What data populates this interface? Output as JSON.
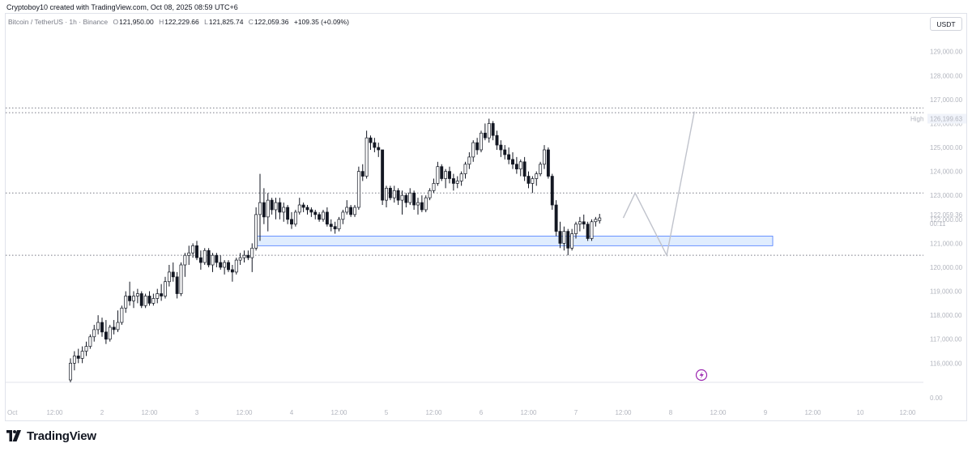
{
  "header": {
    "attribution": "Cryptoboy10 created with TradingView.com, Oct 08, 2025 08:59 UTC+6"
  },
  "legend": {
    "symbol": "Bitcoin / TetherUS · 1h · Binance",
    "open_label": "O",
    "open": "121,950.00",
    "high_label": "H",
    "high": "122,229.66",
    "low_label": "L",
    "low": "121,825.74",
    "close_label": "C",
    "close": "122,059.36",
    "change": "+109.35 (+0.09%)"
  },
  "currency_button": "USDT",
  "brand": {
    "name": "TradingView"
  },
  "colors": {
    "candle_up_body": "#ffffff",
    "candle_down_body": "#131722",
    "candle_border": "#131722",
    "zone_fill": "#dbeafe",
    "zone_border": "#2962ff",
    "projection": "#c0c3cc",
    "dotted_level": "#787b86",
    "price_tag": "#131722"
  },
  "chart_data": {
    "type": "candlestick",
    "ylim": [
      115200,
      129800
    ],
    "y_ticks": [
      116000,
      117000,
      118000,
      119000,
      120000,
      121000,
      122000,
      123000,
      124000,
      125000,
      126000,
      127000,
      128000,
      129000
    ],
    "y_tick_labels": [
      "116,000.00",
      "117,000.00",
      "118,000.00",
      "119,000.00",
      "120,000.00",
      "121,000.00",
      "122,000.00",
      "123,000.00",
      "124,000.00",
      "125,000.00",
      "126,000.00",
      "127,000.00",
      "128,000.00",
      "129,000.00"
    ],
    "y_zero_label": "0.00",
    "x_labels": [
      "Oct",
      "12:00",
      "2",
      "12:00",
      "3",
      "12:00",
      "4",
      "12:00",
      "5",
      "12:00",
      "6",
      "12:00",
      "7",
      "12:00",
      "8",
      "12:00",
      "9",
      "12:00",
      "10",
      "12:00"
    ],
    "x_label_hours": [
      0,
      12,
      24,
      36,
      48,
      60,
      72,
      84,
      96,
      108,
      120,
      132,
      144,
      156,
      168,
      180,
      192,
      204,
      216,
      228
    ],
    "candles": [
      {
        "o": 115300,
        "h": 116200,
        "l": 115200,
        "c": 116000
      },
      {
        "o": 116000,
        "h": 116500,
        "l": 115700,
        "c": 116300
      },
      {
        "o": 116300,
        "h": 116600,
        "l": 116000,
        "c": 116200
      },
      {
        "o": 116200,
        "h": 116700,
        "l": 116000,
        "c": 116500
      },
      {
        "o": 116500,
        "h": 116900,
        "l": 116300,
        "c": 116700
      },
      {
        "o": 116700,
        "h": 117200,
        "l": 116600,
        "c": 117100
      },
      {
        "o": 117100,
        "h": 117600,
        "l": 116900,
        "c": 117400
      },
      {
        "o": 117400,
        "h": 118000,
        "l": 117200,
        "c": 117700
      },
      {
        "o": 117700,
        "h": 117900,
        "l": 117100,
        "c": 117300
      },
      {
        "o": 117300,
        "h": 117800,
        "l": 116800,
        "c": 117000
      },
      {
        "o": 117000,
        "h": 117600,
        "l": 116900,
        "c": 117500
      },
      {
        "o": 117500,
        "h": 117800,
        "l": 117200,
        "c": 117400
      },
      {
        "o": 117400,
        "h": 118200,
        "l": 117300,
        "c": 117700
      },
      {
        "o": 117700,
        "h": 118400,
        "l": 117600,
        "c": 118300
      },
      {
        "o": 118300,
        "h": 119000,
        "l": 118100,
        "c": 118800
      },
      {
        "o": 118800,
        "h": 119400,
        "l": 118400,
        "c": 118600
      },
      {
        "o": 118600,
        "h": 119000,
        "l": 118300,
        "c": 118800
      },
      {
        "o": 118800,
        "h": 119100,
        "l": 118500,
        "c": 118900
      },
      {
        "o": 118900,
        "h": 119000,
        "l": 118300,
        "c": 118400
      },
      {
        "o": 118400,
        "h": 118900,
        "l": 118300,
        "c": 118800
      },
      {
        "o": 118800,
        "h": 119000,
        "l": 118400,
        "c": 118500
      },
      {
        "o": 118500,
        "h": 118900,
        "l": 118400,
        "c": 118700
      },
      {
        "o": 118700,
        "h": 119100,
        "l": 118500,
        "c": 118900
      },
      {
        "o": 118900,
        "h": 119300,
        "l": 118600,
        "c": 118800
      },
      {
        "o": 118800,
        "h": 119600,
        "l": 118700,
        "c": 119400
      },
      {
        "o": 119400,
        "h": 120100,
        "l": 119200,
        "c": 119800
      },
      {
        "o": 119800,
        "h": 120200,
        "l": 119400,
        "c": 119600
      },
      {
        "o": 119600,
        "h": 119800,
        "l": 118700,
        "c": 118900
      },
      {
        "o": 118900,
        "h": 120200,
        "l": 118800,
        "c": 120100
      },
      {
        "o": 120100,
        "h": 120600,
        "l": 119600,
        "c": 120500
      },
      {
        "o": 120500,
        "h": 120900,
        "l": 120100,
        "c": 120600
      },
      {
        "o": 120600,
        "h": 121000,
        "l": 120400,
        "c": 120900
      },
      {
        "o": 120900,
        "h": 121100,
        "l": 120300,
        "c": 120400
      },
      {
        "o": 120400,
        "h": 120700,
        "l": 119900,
        "c": 120200
      },
      {
        "o": 120200,
        "h": 120800,
        "l": 120100,
        "c": 120700
      },
      {
        "o": 120700,
        "h": 120800,
        "l": 120000,
        "c": 120100
      },
      {
        "o": 120100,
        "h": 120600,
        "l": 119800,
        "c": 120500
      },
      {
        "o": 120500,
        "h": 120600,
        "l": 120000,
        "c": 120200
      },
      {
        "o": 120200,
        "h": 120500,
        "l": 119900,
        "c": 120000
      },
      {
        "o": 120000,
        "h": 120300,
        "l": 119700,
        "c": 120200
      },
      {
        "o": 120200,
        "h": 120300,
        "l": 119800,
        "c": 119900
      },
      {
        "o": 119900,
        "h": 120100,
        "l": 119400,
        "c": 119800
      },
      {
        "o": 119800,
        "h": 120400,
        "l": 119700,
        "c": 120300
      },
      {
        "o": 120300,
        "h": 120600,
        "l": 120100,
        "c": 120400
      },
      {
        "o": 120400,
        "h": 120700,
        "l": 120200,
        "c": 120500
      },
      {
        "o": 120500,
        "h": 120700,
        "l": 120300,
        "c": 120400
      },
      {
        "o": 120400,
        "h": 121000,
        "l": 119800,
        "c": 120800
      },
      {
        "o": 120800,
        "h": 122500,
        "l": 120700,
        "c": 122200
      },
      {
        "o": 122200,
        "h": 123900,
        "l": 121100,
        "c": 122700
      },
      {
        "o": 122700,
        "h": 123300,
        "l": 121800,
        "c": 122100
      },
      {
        "o": 122100,
        "h": 123100,
        "l": 121500,
        "c": 122800
      },
      {
        "o": 122800,
        "h": 122900,
        "l": 122200,
        "c": 122400
      },
      {
        "o": 122400,
        "h": 122900,
        "l": 122000,
        "c": 122700
      },
      {
        "o": 122700,
        "h": 122900,
        "l": 122000,
        "c": 122300
      },
      {
        "o": 122300,
        "h": 122700,
        "l": 121900,
        "c": 122500
      },
      {
        "o": 122500,
        "h": 122600,
        "l": 121800,
        "c": 122000
      },
      {
        "o": 122000,
        "h": 122300,
        "l": 121600,
        "c": 121800
      },
      {
        "o": 121800,
        "h": 122400,
        "l": 121700,
        "c": 122300
      },
      {
        "o": 122300,
        "h": 122900,
        "l": 122200,
        "c": 122600
      },
      {
        "o": 122600,
        "h": 122700,
        "l": 122300,
        "c": 122500
      },
      {
        "o": 122500,
        "h": 122600,
        "l": 122200,
        "c": 122400
      },
      {
        "o": 122400,
        "h": 122500,
        "l": 122100,
        "c": 122300
      },
      {
        "o": 122300,
        "h": 122400,
        "l": 122000,
        "c": 122200
      },
      {
        "o": 122200,
        "h": 122300,
        "l": 121900,
        "c": 122000
      },
      {
        "o": 122000,
        "h": 122400,
        "l": 121900,
        "c": 122300
      },
      {
        "o": 122300,
        "h": 122500,
        "l": 121700,
        "c": 121800
      },
      {
        "o": 121800,
        "h": 122000,
        "l": 121500,
        "c": 121700
      },
      {
        "o": 121700,
        "h": 121900,
        "l": 121400,
        "c": 121600
      },
      {
        "o": 121600,
        "h": 122100,
        "l": 121500,
        "c": 122000
      },
      {
        "o": 122000,
        "h": 122400,
        "l": 121800,
        "c": 122300
      },
      {
        "o": 122300,
        "h": 122800,
        "l": 122200,
        "c": 122500
      },
      {
        "o": 122500,
        "h": 122600,
        "l": 122100,
        "c": 122200
      },
      {
        "o": 122200,
        "h": 122600,
        "l": 122100,
        "c": 122500
      },
      {
        "o": 122500,
        "h": 124200,
        "l": 122400,
        "c": 124000
      },
      {
        "o": 124000,
        "h": 124300,
        "l": 123600,
        "c": 123800
      },
      {
        "o": 123800,
        "h": 125700,
        "l": 123700,
        "c": 125400
      },
      {
        "o": 125400,
        "h": 125500,
        "l": 124900,
        "c": 125200
      },
      {
        "o": 125200,
        "h": 125400,
        "l": 124800,
        "c": 125000
      },
      {
        "o": 125000,
        "h": 125200,
        "l": 124600,
        "c": 124900
      },
      {
        "o": 124900,
        "h": 124900,
        "l": 122600,
        "c": 122800
      },
      {
        "o": 122800,
        "h": 123400,
        "l": 122500,
        "c": 123300
      },
      {
        "o": 123300,
        "h": 123400,
        "l": 122800,
        "c": 122900
      },
      {
        "o": 122900,
        "h": 123400,
        "l": 122700,
        "c": 123200
      },
      {
        "o": 123200,
        "h": 123300,
        "l": 122600,
        "c": 122800
      },
      {
        "o": 122800,
        "h": 123200,
        "l": 122200,
        "c": 123000
      },
      {
        "o": 123000,
        "h": 123100,
        "l": 122500,
        "c": 122700
      },
      {
        "o": 122700,
        "h": 123300,
        "l": 122600,
        "c": 123100
      },
      {
        "o": 123100,
        "h": 123200,
        "l": 122400,
        "c": 122600
      },
      {
        "o": 122600,
        "h": 122900,
        "l": 122200,
        "c": 122700
      },
      {
        "o": 122700,
        "h": 123000,
        "l": 122300,
        "c": 122400
      },
      {
        "o": 122400,
        "h": 123000,
        "l": 122300,
        "c": 122900
      },
      {
        "o": 122900,
        "h": 123300,
        "l": 122800,
        "c": 123200
      },
      {
        "o": 123200,
        "h": 123700,
        "l": 123100,
        "c": 123500
      },
      {
        "o": 123500,
        "h": 124400,
        "l": 123400,
        "c": 124200
      },
      {
        "o": 124200,
        "h": 124300,
        "l": 123600,
        "c": 123700
      },
      {
        "o": 123700,
        "h": 124100,
        "l": 123300,
        "c": 124000
      },
      {
        "o": 124000,
        "h": 124200,
        "l": 123500,
        "c": 123700
      },
      {
        "o": 123700,
        "h": 123900,
        "l": 123200,
        "c": 123500
      },
      {
        "o": 123500,
        "h": 123800,
        "l": 123300,
        "c": 123600
      },
      {
        "o": 123600,
        "h": 124000,
        "l": 123400,
        "c": 123900
      },
      {
        "o": 123900,
        "h": 124400,
        "l": 123700,
        "c": 124300
      },
      {
        "o": 124300,
        "h": 124800,
        "l": 124100,
        "c": 124600
      },
      {
        "o": 124600,
        "h": 125300,
        "l": 124400,
        "c": 125200
      },
      {
        "o": 125200,
        "h": 125400,
        "l": 124700,
        "c": 124900
      },
      {
        "o": 124900,
        "h": 125700,
        "l": 124800,
        "c": 125600
      },
      {
        "o": 125600,
        "h": 126000,
        "l": 125300,
        "c": 125400
      },
      {
        "o": 125400,
        "h": 126200,
        "l": 125200,
        "c": 126000
      },
      {
        "o": 126000,
        "h": 126100,
        "l": 125300,
        "c": 125500
      },
      {
        "o": 125500,
        "h": 125700,
        "l": 124900,
        "c": 125100
      },
      {
        "o": 125100,
        "h": 125300,
        "l": 124600,
        "c": 124900
      },
      {
        "o": 124900,
        "h": 125100,
        "l": 124500,
        "c": 124700
      },
      {
        "o": 124700,
        "h": 125000,
        "l": 124300,
        "c": 124500
      },
      {
        "o": 124500,
        "h": 124800,
        "l": 124100,
        "c": 124300
      },
      {
        "o": 124300,
        "h": 124600,
        "l": 123900,
        "c": 124100
      },
      {
        "o": 124100,
        "h": 124500,
        "l": 123800,
        "c": 124400
      },
      {
        "o": 124400,
        "h": 124600,
        "l": 123600,
        "c": 123800
      },
      {
        "o": 123800,
        "h": 124000,
        "l": 123300,
        "c": 123500
      },
      {
        "o": 123500,
        "h": 123800,
        "l": 123100,
        "c": 123700
      },
      {
        "o": 123700,
        "h": 124000,
        "l": 123400,
        "c": 123900
      },
      {
        "o": 123900,
        "h": 124400,
        "l": 123800,
        "c": 124300
      },
      {
        "o": 124300,
        "h": 125100,
        "l": 124100,
        "c": 124900
      },
      {
        "o": 124900,
        "h": 125000,
        "l": 123700,
        "c": 123800
      },
      {
        "o": 123800,
        "h": 123900,
        "l": 122400,
        "c": 122600
      },
      {
        "o": 122600,
        "h": 122800,
        "l": 121300,
        "c": 121500
      },
      {
        "o": 121500,
        "h": 121900,
        "l": 120800,
        "c": 121000
      },
      {
        "o": 121000,
        "h": 121700,
        "l": 120700,
        "c": 121500
      },
      {
        "o": 121500,
        "h": 121600,
        "l": 120500,
        "c": 120800
      },
      {
        "o": 120800,
        "h": 121600,
        "l": 120700,
        "c": 121400
      },
      {
        "o": 121400,
        "h": 121900,
        "l": 121200,
        "c": 121800
      },
      {
        "o": 121800,
        "h": 122100,
        "l": 121500,
        "c": 121900
      },
      {
        "o": 121900,
        "h": 122200,
        "l": 121600,
        "c": 121800
      },
      {
        "o": 121800,
        "h": 121900,
        "l": 121100,
        "c": 121200
      },
      {
        "o": 121200,
        "h": 122000,
        "l": 121100,
        "c": 121900
      },
      {
        "o": 121900,
        "h": 122100,
        "l": 121700,
        "c": 122000
      },
      {
        "o": 121950,
        "h": 122230,
        "l": 121826,
        "c": 122059
      }
    ],
    "demand_zone": {
      "bottom": 120900,
      "top": 121300,
      "start_candle": 47
    },
    "dotted_levels": [
      126650,
      126450,
      123100,
      120500
    ],
    "projection_path": [
      {
        "hour": 156,
        "price": 122060
      },
      {
        "hour": 159,
        "price": 123100
      },
      {
        "hour": 167,
        "price": 120500
      },
      {
        "hour": 174,
        "price": 126500
      }
    ],
    "high_label": "High",
    "high_value": "126,199.63",
    "high_price": 126199.63,
    "last_price_label": "122,059.36",
    "last_price": 122059.36,
    "countdown": "00:11"
  }
}
